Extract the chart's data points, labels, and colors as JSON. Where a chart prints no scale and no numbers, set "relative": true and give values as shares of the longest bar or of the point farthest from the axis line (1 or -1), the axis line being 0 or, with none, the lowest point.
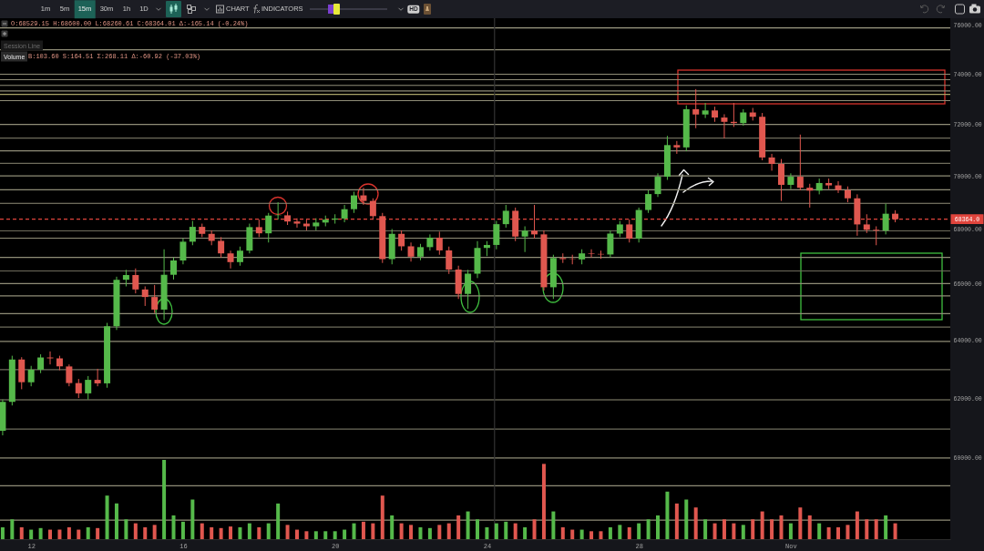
{
  "chart_data": [
    {
      "type": "candlestick",
      "annotations": [
        "1m",
        "5m",
        "15m",
        "30m",
        "1h",
        "1D",
        "CHART",
        "INDICATORS",
        "HD",
        "O:68529.15 H:68600.00 L:68260.61 C:68364.01 Δ:-165.14 (-0.24%)",
        "Session Line",
        "Volume",
        "B:103.60 S:164.51 Σ:268.11 Δ:-60.92 (-37.03%)"
      ],
      "x": [
        11.25,
        11.5,
        11.75,
        12,
        12.25,
        12.5,
        12.75,
        13,
        13.25,
        13.5,
        13.75,
        14,
        14.25,
        14.5,
        14.75,
        15,
        15.25,
        15.5,
        15.75,
        16,
        16.25,
        16.5,
        16.75,
        17,
        17.25,
        17.5,
        17.75,
        18,
        18.25,
        18.5,
        18.75,
        19,
        19.25,
        19.5,
        19.75,
        20,
        20.25,
        20.5,
        20.75,
        21,
        21.25,
        21.5,
        21.75,
        22,
        22.25,
        22.5,
        22.75,
        23,
        23.25,
        23.5,
        23.75,
        24,
        24.25,
        24.5,
        24.75,
        25,
        25.25,
        25.5,
        25.75,
        26,
        26.25,
        26.5,
        26.75,
        27,
        27.25,
        27.5,
        27.75,
        28,
        28.25,
        28.5,
        28.75,
        29,
        29.25,
        29.5,
        29.75,
        30,
        30.25,
        30.5,
        30.75,
        31,
        31.25,
        31.5,
        31.75,
        32,
        32.25,
        32.5,
        32.75,
        33,
        33.25,
        33.5,
        33.75,
        34,
        34.25,
        34.5,
        34.75
      ],
      "ohlc": [
        [
          60900,
          61950,
          60750,
          61870
        ],
        [
          61870,
          63450,
          61750,
          63320
        ],
        [
          63320,
          63400,
          62300,
          62540
        ],
        [
          62540,
          63100,
          62400,
          62970
        ],
        [
          62970,
          63500,
          62850,
          63390
        ],
        [
          63390,
          63600,
          63150,
          63360
        ],
        [
          63360,
          63450,
          62950,
          63080
        ],
        [
          63080,
          63150,
          62400,
          62510
        ],
        [
          62510,
          62650,
          62000,
          62160
        ],
        [
          62160,
          62750,
          61950,
          62620
        ],
        [
          62620,
          63000,
          62400,
          62500
        ],
        [
          62500,
          64600,
          62350,
          64480
        ],
        [
          64480,
          66250,
          64350,
          66140
        ],
        [
          66140,
          66500,
          65900,
          66310
        ],
        [
          66310,
          66550,
          65650,
          65790
        ],
        [
          65790,
          65900,
          65200,
          65520
        ],
        [
          65520,
          65950,
          64950,
          65070
        ],
        [
          65070,
          67250,
          64700,
          66320
        ],
        [
          66320,
          66950,
          66150,
          66840
        ],
        [
          66840,
          67650,
          66700,
          67530
        ],
        [
          67530,
          68300,
          67400,
          68080
        ],
        [
          68080,
          68200,
          67700,
          67820
        ],
        [
          67820,
          67950,
          67400,
          67560
        ],
        [
          67560,
          67700,
          66950,
          67100
        ],
        [
          67100,
          67200,
          66550,
          66780
        ],
        [
          66780,
          67350,
          66650,
          67200
        ],
        [
          67200,
          68200,
          67100,
          68070
        ],
        [
          68070,
          68350,
          67700,
          67840
        ],
        [
          67840,
          68600,
          67500,
          68500
        ],
        [
          68500,
          69000,
          68350,
          68510
        ],
        [
          68510,
          68650,
          68150,
          68280
        ],
        [
          68280,
          68400,
          68050,
          68200
        ],
        [
          68200,
          68350,
          67950,
          68100
        ],
        [
          68100,
          68400,
          67950,
          68240
        ],
        [
          68240,
          68500,
          68100,
          68350
        ],
        [
          68350,
          68550,
          68200,
          68390
        ],
        [
          68390,
          68900,
          68250,
          68740
        ],
        [
          68740,
          69400,
          68600,
          69260
        ],
        [
          69260,
          69550,
          68900,
          69050
        ],
        [
          69050,
          69150,
          68350,
          68480
        ],
        [
          68480,
          68600,
          66750,
          66890
        ],
        [
          66890,
          68000,
          66700,
          67820
        ],
        [
          67820,
          67950,
          67200,
          67360
        ],
        [
          67360,
          67500,
          66800,
          66980
        ],
        [
          66980,
          67450,
          66850,
          67330
        ],
        [
          67330,
          67800,
          67200,
          67680
        ],
        [
          67680,
          67900,
          67050,
          67210
        ],
        [
          67210,
          67350,
          66350,
          66510
        ],
        [
          66510,
          66650,
          65450,
          65630
        ],
        [
          65630,
          66500,
          65100,
          66360
        ],
        [
          66360,
          67550,
          66200,
          67300
        ],
        [
          67300,
          67550,
          67000,
          67410
        ],
        [
          67410,
          68300,
          67250,
          68180
        ],
        [
          68180,
          68900,
          68050,
          68680
        ],
        [
          68680,
          68800,
          67550,
          67720
        ],
        [
          67720,
          68100,
          67150,
          67940
        ],
        [
          67940,
          68900,
          67650,
          67800
        ],
        [
          67800,
          67950,
          65750,
          65870
        ],
        [
          65870,
          67050,
          65450,
          66930
        ],
        [
          66930,
          67100,
          66750,
          66890
        ],
        [
          66890,
          67050,
          66700,
          66880
        ],
        [
          66880,
          67250,
          66700,
          67100
        ],
        [
          67100,
          67250,
          66950,
          67080
        ],
        [
          67080,
          67200,
          66900,
          67060
        ],
        [
          67060,
          67950,
          66950,
          67830
        ],
        [
          67830,
          68300,
          67700,
          68170
        ],
        [
          68170,
          68350,
          67500,
          67640
        ],
        [
          67640,
          68800,
          67500,
          68710
        ],
        [
          68710,
          69450,
          68600,
          69310
        ],
        [
          69310,
          70100,
          69200,
          69970
        ],
        [
          69970,
          71550,
          69850,
          71190
        ],
        [
          71190,
          71350,
          70850,
          71100
        ],
        [
          71100,
          72750,
          70950,
          72600
        ],
        [
          72600,
          73400,
          71850,
          72390
        ],
        [
          72390,
          72850,
          72250,
          72550
        ],
        [
          72550,
          72700,
          72100,
          72270
        ],
        [
          72270,
          72400,
          71450,
          72100
        ],
        [
          72100,
          72850,
          71900,
          72050
        ],
        [
          72050,
          72600,
          71950,
          72470
        ],
        [
          72470,
          72650,
          72150,
          72300
        ],
        [
          72300,
          72450,
          70600,
          70710
        ],
        [
          70710,
          70850,
          70200,
          70460
        ],
        [
          70460,
          70650,
          69050,
          69660
        ],
        [
          69660,
          70100,
          69500,
          69970
        ],
        [
          69970,
          71600,
          69450,
          69550
        ],
        [
          69550,
          69700,
          68800,
          69440
        ],
        [
          69440,
          69900,
          69300,
          69730
        ],
        [
          69730,
          69900,
          69500,
          69640
        ],
        [
          69640,
          69800,
          69350,
          69460
        ],
        [
          69460,
          69600,
          69000,
          69150
        ],
        [
          69150,
          69300,
          67750,
          68170
        ],
        [
          68170,
          68550,
          67850,
          67970
        ],
        [
          67970,
          68100,
          67400,
          67940
        ],
        [
          67940,
          68950,
          67800,
          68570
        ],
        [
          68570,
          68700,
          68250,
          68364
        ]
      ],
      "colors": [
        "#55b94a",
        "#55b94a",
        "#e0574f",
        "#55b94a",
        "#55b94a",
        "#e0574f",
        "#e0574f",
        "#e0574f",
        "#e0574f",
        "#55b94a",
        "#e0574f",
        "#55b94a",
        "#55b94a",
        "#55b94a",
        "#e0574f",
        "#e0574f",
        "#e0574f",
        "#55b94a",
        "#55b94a",
        "#55b94a",
        "#55b94a",
        "#e0574f",
        "#e0574f",
        "#e0574f",
        "#e0574f",
        "#55b94a",
        "#55b94a",
        "#e0574f",
        "#55b94a",
        "#55b94a",
        "#e0574f",
        "#e0574f",
        "#e0574f",
        "#55b94a",
        "#55b94a",
        "#55b94a",
        "#55b94a",
        "#55b94a",
        "#e0574f",
        "#e0574f",
        "#e0574f",
        "#55b94a",
        "#e0574f",
        "#e0574f",
        "#55b94a",
        "#55b94a",
        "#e0574f",
        "#e0574f",
        "#e0574f",
        "#55b94a",
        "#55b94a",
        "#55b94a",
        "#55b94a",
        "#55b94a",
        "#e0574f",
        "#55b94a",
        "#e0574f",
        "#e0574f",
        "#55b94a",
        "#e0574f",
        "#e0574f",
        "#55b94a",
        "#e0574f",
        "#e0574f",
        "#55b94a",
        "#55b94a",
        "#e0574f",
        "#55b94a",
        "#55b94a",
        "#55b94a",
        "#55b94a",
        "#e0574f",
        "#55b94a",
        "#e0574f",
        "#55b94a",
        "#e0574f",
        "#e0574f",
        "#e0574f",
        "#55b94a",
        "#e0574f",
        "#e0574f",
        "#e0574f",
        "#e0574f",
        "#55b94a",
        "#e0574f",
        "#e0574f",
        "#55b94a",
        "#e0574f",
        "#e0574f",
        "#e0574f",
        "#e0574f",
        "#e0574f",
        "#e0574f",
        "#55b94a",
        "#e0574f"
      ],
      "xlim": [
        11.18,
        36.2
      ],
      "xticks": [
        12,
        16,
        20,
        24,
        28,
        {
          "value": 32,
          "label": "Nov"
        }
      ],
      "ylim": [
        57400,
        76300
      ],
      "yticks": [
        {
          "value": 60000,
          "label": "60000.00"
        },
        {
          "value": 62000,
          "label": "62000.00"
        },
        {
          "value": 64000,
          "label": "64000.00"
        },
        {
          "value": 66000,
          "label": "66000.00"
        },
        {
          "value": 68000,
          "label": "68000.00"
        },
        {
          "value": 70000,
          "label": "70000.00"
        },
        {
          "value": 72000,
          "label": "72000.00"
        },
        {
          "value": 74000,
          "label": "74000.00"
        },
        {
          "value": 76000,
          "label": "76000.00"
        }
      ],
      "log": true,
      "ref_lines": [
        {
          "axis": "y",
          "value": 75900,
          "color": "#9c9a82"
        },
        {
          "axis": "y",
          "value": 75000,
          "color": "#8f8d77"
        },
        {
          "axis": "y",
          "value": 74000,
          "color": "#8f8d77"
        },
        {
          "axis": "y",
          "value": 73780,
          "color": "#8f8d77"
        },
        {
          "axis": "y",
          "value": 73550,
          "color": "#8f8d77"
        },
        {
          "axis": "y",
          "value": 73330,
          "color": "#8f8d77"
        },
        {
          "axis": "y",
          "value": 73190,
          "color": "#a8a468"
        },
        {
          "axis": "y",
          "value": 72940,
          "color": "#8f8d77"
        },
        {
          "axis": "y",
          "value": 72000,
          "color": "#8f8d77"
        },
        {
          "axis": "y",
          "value": 71460,
          "color": "#6e6c5c"
        },
        {
          "axis": "y",
          "value": 70970,
          "color": "#8f8d77"
        },
        {
          "axis": "y",
          "value": 70480,
          "color": "#6e6c5c"
        },
        {
          "axis": "y",
          "value": 70000,
          "color": "#8f8d77"
        },
        {
          "axis": "y",
          "value": 69470,
          "color": "#8f8d77"
        },
        {
          "axis": "y",
          "value": 68960,
          "color": "#8f8d77"
        },
        {
          "axis": "y",
          "value": 67930,
          "color": "#6e6c5c"
        },
        {
          "axis": "y",
          "value": 67660,
          "color": "#8f8d77"
        },
        {
          "axis": "y",
          "value": 66950,
          "color": "#8f8d77"
        },
        {
          "axis": "y",
          "value": 66460,
          "color": "#6e6c5c"
        },
        {
          "axis": "y",
          "value": 66000,
          "color": "#8f8d77"
        },
        {
          "axis": "y",
          "value": 65560,
          "color": "#8f8d77"
        },
        {
          "axis": "y",
          "value": 64930,
          "color": "#8f8d77"
        },
        {
          "axis": "y",
          "value": 64450,
          "color": "#6e6c5c"
        },
        {
          "axis": "y",
          "value": 63950,
          "color": "#8f8d77"
        },
        {
          "axis": "y",
          "value": 62970,
          "color": "#6e6c5c"
        },
        {
          "axis": "y",
          "value": 61940,
          "color": "#8f8d77"
        },
        {
          "axis": "y",
          "value": 60960,
          "color": "#6e6c5c"
        },
        {
          "axis": "y",
          "value": 60000,
          "color": "#8f8d77"
        },
        {
          "axis": "y",
          "value": 59100,
          "color": "#8f8d77"
        },
        {
          "axis": "y",
          "value": 58000,
          "color": "#8f8d77"
        },
        {
          "axis": "x",
          "value": 24.2,
          "color": "#333333"
        },
        {
          "axis": "y",
          "value": 68364,
          "label": "68364.0",
          "color": "#e0443c",
          "line_style": "dashed"
        }
      ]
    },
    {
      "type": "bar",
      "relative": true,
      "tick_labels": false,
      "xlim": [
        11.18,
        36.2
      ],
      "x": [
        11.25,
        11.5,
        11.75,
        12,
        12.25,
        12.5,
        12.75,
        13,
        13.25,
        13.5,
        13.75,
        14,
        14.25,
        14.5,
        14.75,
        15,
        15.25,
        15.5,
        15.75,
        16,
        16.25,
        16.5,
        16.75,
        17,
        17.25,
        17.5,
        17.75,
        18,
        18.25,
        18.5,
        18.75,
        19,
        19.25,
        19.5,
        19.75,
        20,
        20.25,
        20.5,
        20.75,
        21,
        21.25,
        21.5,
        21.75,
        22,
        22.25,
        22.5,
        22.75,
        23,
        23.25,
        23.5,
        23.75,
        24,
        24.25,
        24.5,
        24.75,
        25,
        25.25,
        25.5,
        25.75,
        26,
        26.25,
        26.5,
        26.75,
        27,
        27.25,
        27.5,
        27.75,
        28,
        28.25,
        28.5,
        28.75,
        29,
        29.25,
        29.5,
        29.75,
        30,
        30.25,
        30.5,
        30.75,
        31,
        31.25,
        31.5,
        31.75,
        32,
        32.25,
        32.5,
        32.75,
        33,
        33.25,
        33.5,
        33.75,
        34,
        34.25,
        34.5,
        34.75
      ],
      "values": [
        0.15,
        0.25,
        0.15,
        0.12,
        0.14,
        0.12,
        0.12,
        0.15,
        0.12,
        0.15,
        0.14,
        0.55,
        0.45,
        0.25,
        0.2,
        0.15,
        0.18,
        1,
        0.3,
        0.22,
        0.5,
        0.2,
        0.15,
        0.14,
        0.16,
        0.15,
        0.2,
        0.15,
        0.2,
        0.45,
        0.18,
        0.12,
        0.1,
        0.1,
        0.1,
        0.1,
        0.12,
        0.2,
        0.22,
        0.2,
        0.55,
        0.3,
        0.2,
        0.18,
        0.15,
        0.14,
        0.18,
        0.2,
        0.3,
        0.35,
        0.25,
        0.15,
        0.2,
        0.22,
        0.2,
        0.15,
        0.25,
        0.95,
        0.35,
        0.15,
        0.12,
        0.12,
        0.1,
        0.1,
        0.15,
        0.18,
        0.15,
        0.2,
        0.25,
        0.3,
        0.6,
        0.45,
        0.5,
        0.4,
        0.25,
        0.2,
        0.25,
        0.2,
        0.18,
        0.25,
        0.35,
        0.25,
        0.3,
        0.2,
        0.4,
        0.3,
        0.2,
        0.15,
        0.15,
        0.18,
        0.35,
        0.25,
        0.25,
        0.3,
        0.2
      ],
      "colors": [
        "#55b94a",
        "#55b94a",
        "#e0574f",
        "#55b94a",
        "#55b94a",
        "#e0574f",
        "#e0574f",
        "#e0574f",
        "#e0574f",
        "#55b94a",
        "#e0574f",
        "#55b94a",
        "#55b94a",
        "#55b94a",
        "#e0574f",
        "#e0574f",
        "#e0574f",
        "#55b94a",
        "#55b94a",
        "#55b94a",
        "#55b94a",
        "#e0574f",
        "#e0574f",
        "#e0574f",
        "#e0574f",
        "#55b94a",
        "#55b94a",
        "#e0574f",
        "#55b94a",
        "#55b94a",
        "#e0574f",
        "#e0574f",
        "#e0574f",
        "#55b94a",
        "#55b94a",
        "#55b94a",
        "#55b94a",
        "#55b94a",
        "#e0574f",
        "#e0574f",
        "#e0574f",
        "#55b94a",
        "#e0574f",
        "#e0574f",
        "#55b94a",
        "#55b94a",
        "#e0574f",
        "#e0574f",
        "#e0574f",
        "#55b94a",
        "#55b94a",
        "#55b94a",
        "#55b94a",
        "#55b94a",
        "#e0574f",
        "#55b94a",
        "#e0574f",
        "#e0574f",
        "#55b94a",
        "#e0574f",
        "#e0574f",
        "#55b94a",
        "#e0574f",
        "#e0574f",
        "#55b94a",
        "#55b94a",
        "#e0574f",
        "#55b94a",
        "#55b94a",
        "#55b94a",
        "#55b94a",
        "#e0574f",
        "#55b94a",
        "#e0574f",
        "#55b94a",
        "#e0574f",
        "#e0574f",
        "#e0574f",
        "#55b94a",
        "#e0574f",
        "#e0574f",
        "#e0574f",
        "#e0574f",
        "#55b94a",
        "#e0574f",
        "#e0574f",
        "#55b94a",
        "#e0574f",
        "#e0574f",
        "#e0574f",
        "#e0574f",
        "#e0574f",
        "#e0574f",
        "#55b94a",
        "#e0574f"
      ]
    }
  ]
}
